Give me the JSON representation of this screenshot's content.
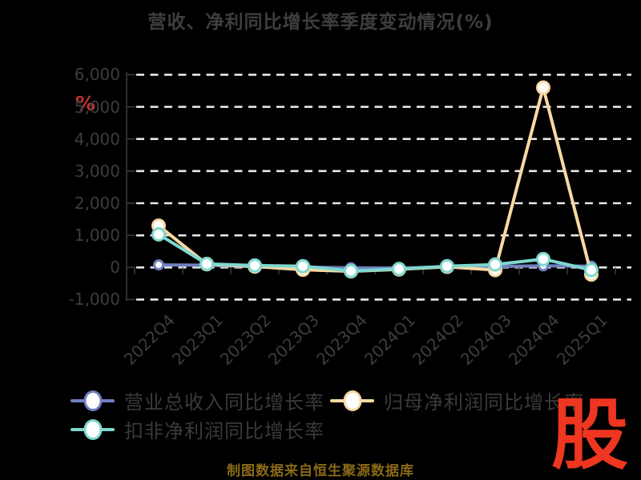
{
  "title": "营收、净利同比增长率季度变动情况(%)",
  "footer": {
    "text": "制图数据来自恒生聚源数据库"
  },
  "logo": {
    "text": "股"
  },
  "y_axis": {
    "unit": "%",
    "tick_labels": [
      "6,000",
      "5,000",
      "4,000",
      "3,000",
      "2,000",
      "1,000",
      "0",
      "-1,000"
    ]
  },
  "colors": {
    "background": "#000000",
    "title_text": "#3e3e3e",
    "axis_label": "#3d3d3d",
    "axis_line": "#3a3a3a",
    "gridline": "#e8e8e8",
    "legend_text": "#3a3a3a",
    "marker_fill": "#ffffff",
    "unit_red": "#c13531",
    "footer_gold": "#8a6a16",
    "logo_red": "#ee3620",
    "series_revenue": "#7080c0",
    "series_net_profit": "#f8d9a4",
    "series_net_profit_ex": "#7ed8ce"
  },
  "chart_data": {
    "type": "line",
    "title": "营收、净利同比增长率季度变动情况(%)",
    "xlabel": "",
    "ylabel": "%",
    "ylim": [
      -1000,
      6000
    ],
    "y_tick_step": 1000,
    "grid": "horizontal dashed white lines on black",
    "legend_position": "bottom",
    "categories": [
      "2022Q4",
      "2023Q1",
      "2023Q2",
      "2023Q3",
      "2023Q4",
      "2024Q1",
      "2024Q2",
      "2024Q3",
      "2024Q4",
      "2025Q1"
    ],
    "series": [
      {
        "name": "营业总收入同比增长率",
        "color": "#7080c0",
        "values": [
          80,
          70,
          30,
          10,
          -10,
          -20,
          20,
          30,
          50,
          40
        ]
      },
      {
        "name": "归母净利润同比增长率",
        "color": "#f8d9a4",
        "values": [
          1300,
          100,
          30,
          -70,
          -120,
          -60,
          20,
          -80,
          5600,
          -220
        ]
      },
      {
        "name": "扣非净利润同比增长率",
        "color": "#7ed8ce",
        "values": [
          1030,
          110,
          60,
          40,
          -110,
          -50,
          40,
          90,
          260,
          -80
        ]
      }
    ]
  }
}
